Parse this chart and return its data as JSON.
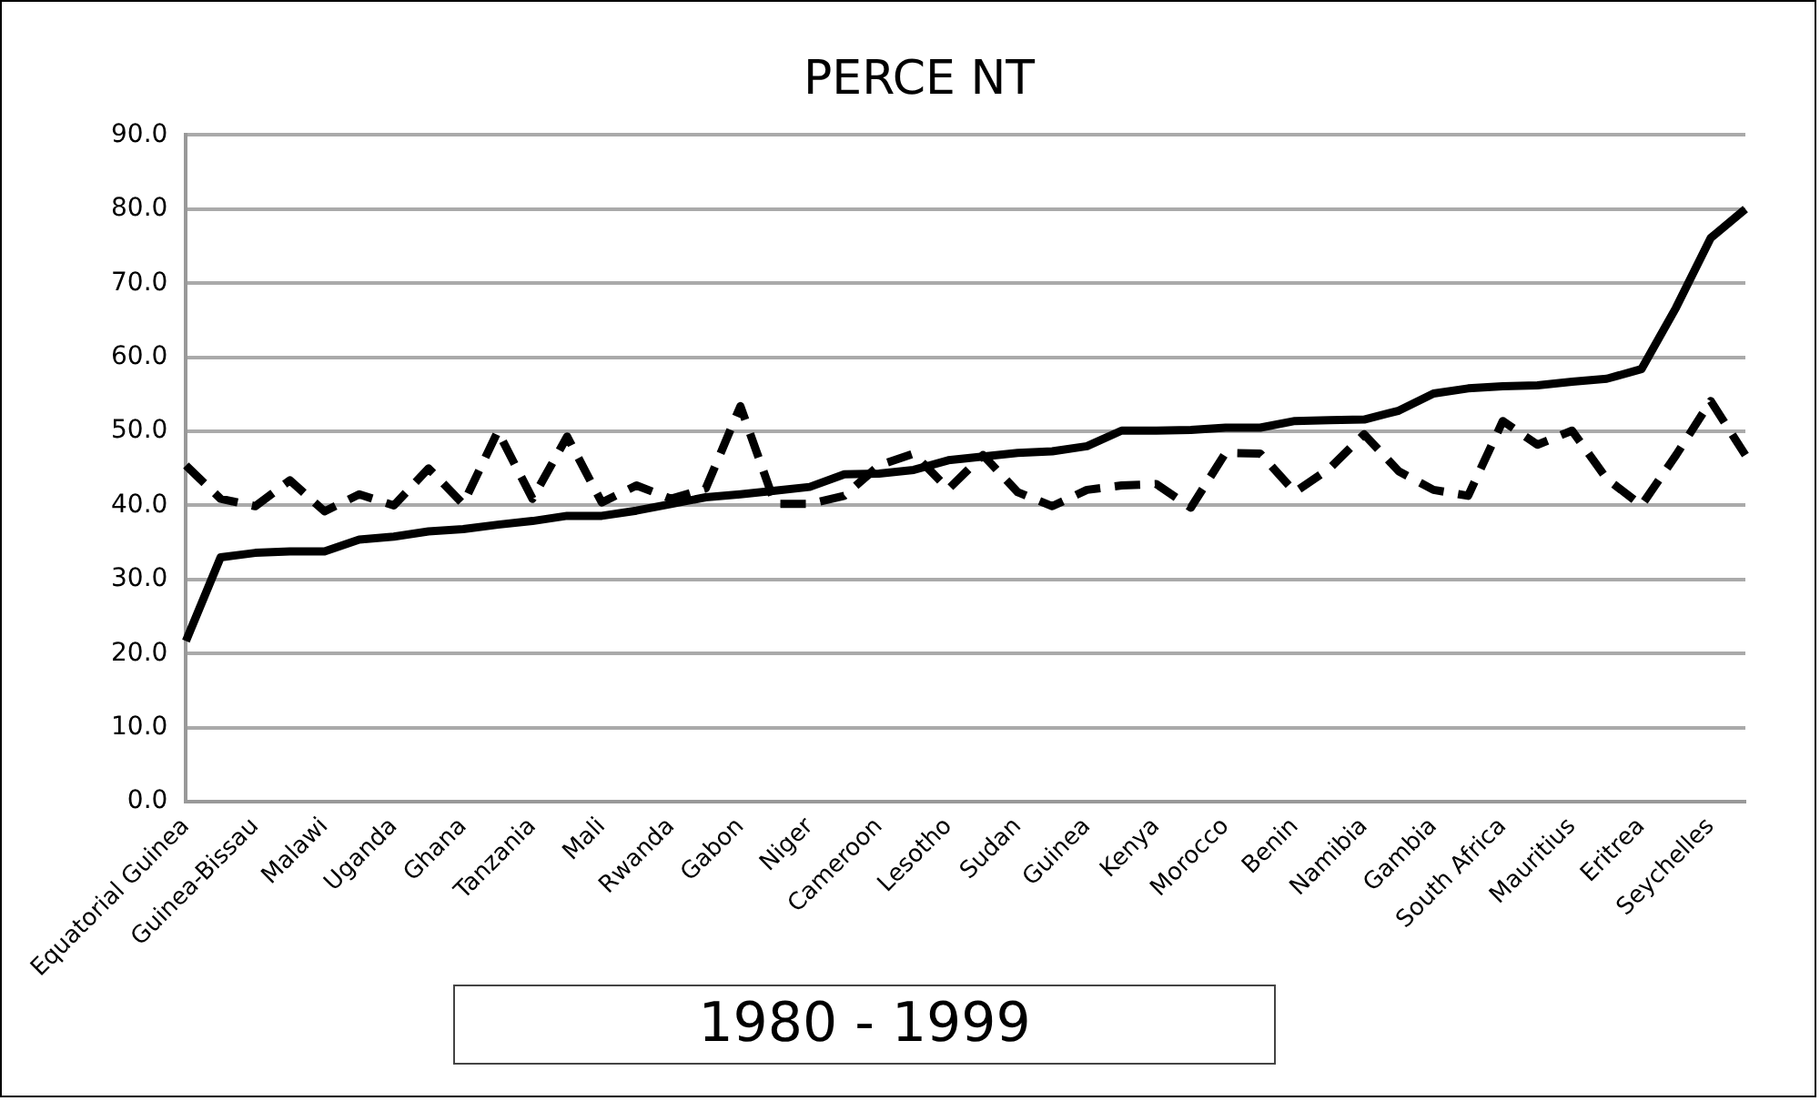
{
  "chart_data": {
    "type": "line",
    "title": "PERCE NT",
    "categories": [
      "Equatorial Guinea",
      null,
      "Guinea-Bissau",
      null,
      "Malawi",
      null,
      "Uganda",
      null,
      "Ghana",
      null,
      "Tanzania",
      null,
      "Mali",
      null,
      "Rwanda",
      null,
      "Gabon",
      null,
      "Niger",
      null,
      "Cameroon",
      null,
      "Lesotho",
      null,
      "Sudan",
      null,
      "Guinea",
      null,
      "Kenya",
      null,
      "Morocco",
      null,
      "Benin",
      null,
      "Namibia",
      null,
      "Gambia",
      null,
      "South Africa",
      null,
      "Mauritius",
      null,
      "Eritrea",
      null,
      "Seychelles",
      null
    ],
    "series": [
      {
        "color": "#000000",
        "line_style": "solid",
        "values": [
          21.7,
          33.0,
          33.6,
          33.8,
          33.8,
          35.4,
          35.8,
          36.5,
          36.8,
          37.4,
          37.9,
          38.6,
          38.6,
          39.3,
          40.2,
          41.1,
          41.5,
          42.0,
          42.5,
          44.2,
          44.3,
          44.8,
          46.1,
          46.6,
          47.1,
          47.3,
          48.0,
          50.1,
          50.1,
          50.2,
          50.5,
          50.5,
          51.4,
          51.5,
          51.6,
          52.8,
          55.1,
          55.8,
          56.1,
          56.2,
          56.7,
          57.1,
          58.4,
          66.7,
          76.1,
          80.0
        ]
      },
      {
        "color": "#000000",
        "line_style": "dashed",
        "values": [
          45.4,
          40.9,
          39.9,
          43.4,
          39.2,
          41.5,
          40.0,
          45.0,
          40.2,
          50.0,
          40.9,
          49.3,
          40.4,
          42.7,
          40.9,
          42.3,
          53.4,
          40.2,
          40.2,
          41.3,
          45.4,
          47.0,
          42.2,
          46.8,
          41.8,
          39.9,
          42.1,
          42.7,
          42.9,
          39.7,
          47.1,
          47.0,
          41.8,
          45.0,
          49.6,
          44.6,
          42.1,
          41.3,
          51.4,
          48.2,
          50.1,
          43.6,
          40.0,
          46.8,
          54.1,
          46.8
        ]
      }
    ],
    "ylim": [
      0,
      90
    ],
    "yticks": [
      {
        "value": 0,
        "label": "0.0"
      },
      {
        "value": 10,
        "label": "10.0"
      },
      {
        "value": 20,
        "label": "20.0"
      },
      {
        "value": 30,
        "label": "30.0"
      },
      {
        "value": 40,
        "label": "40.0"
      },
      {
        "value": 50,
        "label": "50.0"
      },
      {
        "value": 60,
        "label": "60.0"
      },
      {
        "value": 70,
        "label": "70.0"
      },
      {
        "value": 80,
        "label": "80.0"
      },
      {
        "value": 90,
        "label": "90.0"
      }
    ],
    "grid": "y",
    "legend": false,
    "marker": "none",
    "annotations": [
      "1980 - 1999"
    ]
  }
}
